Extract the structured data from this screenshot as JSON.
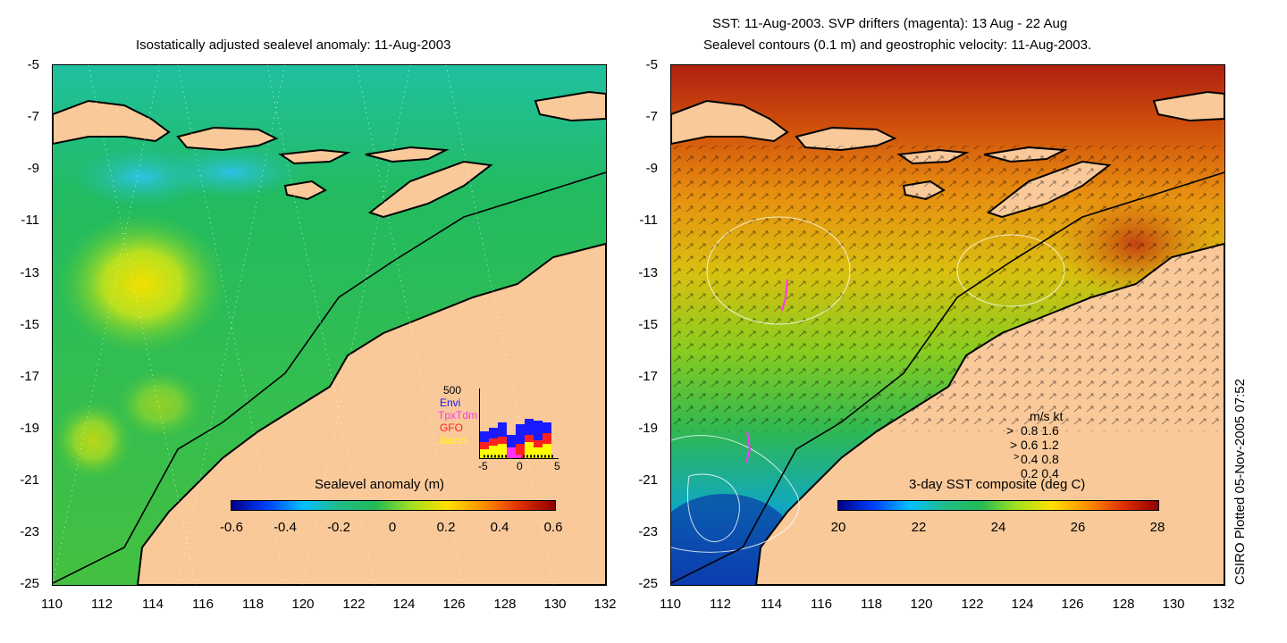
{
  "left_panel": {
    "title": "Isostatically adjusted sealevel anomaly: 11-Aug-2003",
    "colorbar": {
      "title": "Sealevel anomaly (m)",
      "ticks": [
        "-0.6",
        "-0.4",
        "-0.2",
        "0",
        "0.2",
        "0.4",
        "0.6"
      ]
    },
    "inset": {
      "ymax_label": "500",
      "legend": [
        {
          "name": "Envi",
          "color": "#1a1aff"
        },
        {
          "name": "TpxTdm",
          "color": "#ff33ff"
        },
        {
          "name": "GFO",
          "color": "#ff2020"
        },
        {
          "name": "Jason",
          "color": "#ffff00"
        }
      ],
      "xticks": [
        "-5",
        "0",
        "5"
      ]
    }
  },
  "right_panel": {
    "title_line1": "SST: 11-Aug-2003. SVP drifters (magenta): 13 Aug - 22 Aug",
    "title_line2": "Sealevel contours (0.1 m) and geostrophic velocity: 11-Aug-2003.",
    "colorbar": {
      "title": "3-day SST composite (deg C)",
      "ticks": [
        "20",
        "22",
        "24",
        "26",
        "28"
      ]
    },
    "velocity_key": {
      "header": "m/s  kt",
      "rows": [
        "0.8  1.6",
        "0.6  1.2",
        "0.4  0.8",
        "0.2  0.4"
      ]
    }
  },
  "axes": {
    "lat_ticks": [
      "-5",
      "-7",
      "-9",
      "-11",
      "-13",
      "-15",
      "-17",
      "-19",
      "-21",
      "-23",
      "-25"
    ],
    "lon_ticks": [
      "110",
      "112",
      "114",
      "116",
      "118",
      "120",
      "122",
      "124",
      "126",
      "128",
      "130",
      "132"
    ]
  },
  "credit": "CSIRO Plotted 05-Nov-2005 07:52",
  "colors": {
    "land": "#f9c99a",
    "sea_left": "#22bb55",
    "sea_right_warm": "#e07a10"
  }
}
